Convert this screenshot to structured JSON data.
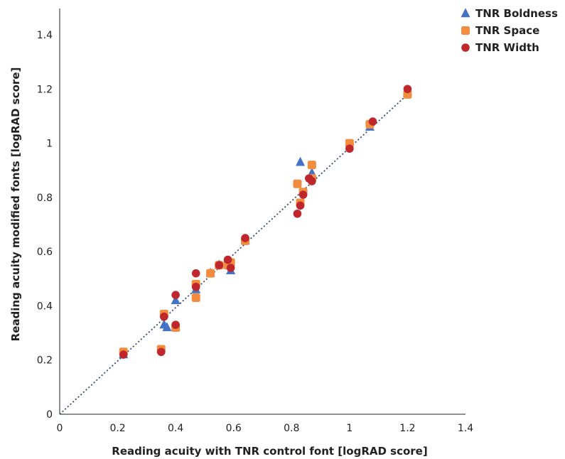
{
  "chart_data": {
    "type": "scatter",
    "title": "",
    "xlabel": "Reading acuity with TNR control font [logRAD score]",
    "ylabel": "Reading acuity modified fonts [logRAD score]",
    "xlim": [
      0,
      1.4
    ],
    "ylim": [
      0,
      1.5
    ],
    "xticks": [
      "0",
      "0.2",
      "0.4",
      "0.6",
      "0.8",
      "1",
      "1.2",
      "1.4"
    ],
    "yticks": [
      "0",
      "0.2",
      "0.4",
      "0.6",
      "0.8",
      "1",
      "1.2",
      "1.4"
    ],
    "grid": false,
    "legend_position": "top-right",
    "reference_line": {
      "style": "dotted",
      "from": [
        0,
        0
      ],
      "to": [
        1.2,
        1.18
      ],
      "color": "#3a4a66"
    },
    "series": [
      {
        "name": "TNR Boldness",
        "marker": "triangle",
        "color": "#4472c4",
        "points": [
          [
            0.22,
            0.22
          ],
          [
            0.36,
            0.33
          ],
          [
            0.37,
            0.32
          ],
          [
            0.4,
            0.32
          ],
          [
            0.4,
            0.42
          ],
          [
            0.47,
            0.46
          ],
          [
            0.52,
            0.52
          ],
          [
            0.55,
            0.55
          ],
          [
            0.59,
            0.53
          ],
          [
            0.64,
            0.64
          ],
          [
            0.83,
            0.93
          ],
          [
            0.87,
            0.89
          ],
          [
            1.07,
            1.06
          ],
          [
            1.2,
            1.19
          ]
        ]
      },
      {
        "name": "TNR Space",
        "marker": "square",
        "color": "#f28c3e",
        "points": [
          [
            0.22,
            0.23
          ],
          [
            0.35,
            0.24
          ],
          [
            0.36,
            0.37
          ],
          [
            0.4,
            0.32
          ],
          [
            0.47,
            0.48
          ],
          [
            0.47,
            0.43
          ],
          [
            0.52,
            0.52
          ],
          [
            0.55,
            0.55
          ],
          [
            0.58,
            0.55
          ],
          [
            0.59,
            0.56
          ],
          [
            0.64,
            0.64
          ],
          [
            0.82,
            0.85
          ],
          [
            0.83,
            0.78
          ],
          [
            0.84,
            0.82
          ],
          [
            0.87,
            0.92
          ],
          [
            0.87,
            0.87
          ],
          [
            1.0,
            1.0
          ],
          [
            1.07,
            1.07
          ],
          [
            1.2,
            1.18
          ]
        ]
      },
      {
        "name": "TNR Width",
        "marker": "circle",
        "color": "#c0272d",
        "points": [
          [
            0.22,
            0.22
          ],
          [
            0.35,
            0.23
          ],
          [
            0.36,
            0.36
          ],
          [
            0.4,
            0.44
          ],
          [
            0.4,
            0.33
          ],
          [
            0.47,
            0.52
          ],
          [
            0.47,
            0.47
          ],
          [
            0.55,
            0.55
          ],
          [
            0.58,
            0.57
          ],
          [
            0.59,
            0.54
          ],
          [
            0.64,
            0.65
          ],
          [
            0.82,
            0.74
          ],
          [
            0.83,
            0.77
          ],
          [
            0.84,
            0.81
          ],
          [
            0.86,
            0.87
          ],
          [
            0.87,
            0.86
          ],
          [
            1.0,
            0.98
          ],
          [
            1.08,
            1.08
          ],
          [
            1.2,
            1.2
          ]
        ]
      }
    ]
  }
}
